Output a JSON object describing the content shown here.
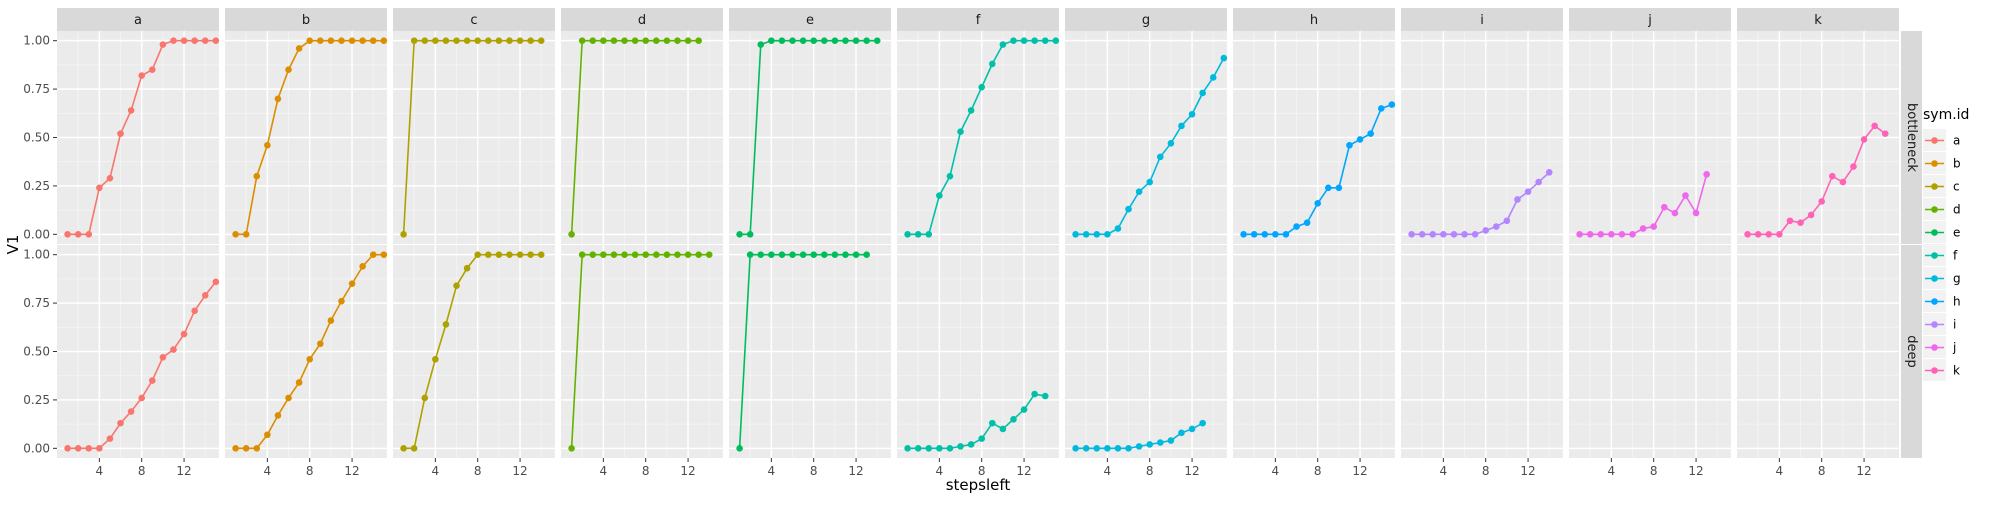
{
  "chart_data": {
    "type": "line",
    "facet_columns": [
      "a",
      "b",
      "c",
      "d",
      "e",
      "f",
      "g",
      "h",
      "i",
      "j",
      "k"
    ],
    "facet_rows": [
      "bottleneck",
      "deep"
    ],
    "xlabel": "stepsleft",
    "ylabel": "V1",
    "x_range": [
      0,
      15.3
    ],
    "x_ticks": [
      4,
      8,
      12
    ],
    "ylim": [
      -0.05,
      1.05
    ],
    "y_ticks": [
      0.0,
      0.25,
      0.5,
      0.75,
      1.0
    ],
    "y_tick_labels": [
      "0.00",
      "0.25",
      "0.50",
      "0.75",
      "1.00"
    ],
    "grid": true,
    "legend": {
      "title": "sym.id",
      "placement": "right",
      "entries": [
        "a",
        "b",
        "c",
        "d",
        "e",
        "f",
        "g",
        "h",
        "i",
        "j",
        "k"
      ]
    },
    "colors": {
      "a": "#F8766D",
      "b": "#DB8E00",
      "c": "#AEA200",
      "d": "#64B200",
      "e": "#00BD5C",
      "f": "#00C1A7",
      "g": "#00BADE",
      "h": "#00A6FF",
      "i": "#B385FF",
      "j": "#EF67EB",
      "k": "#FF63B6"
    },
    "panels": {
      "bottleneck": {
        "a": [
          [
            1,
            0
          ],
          [
            2,
            0
          ],
          [
            3,
            0
          ],
          [
            4,
            0.24
          ],
          [
            5,
            0.29
          ],
          [
            6,
            0.52
          ],
          [
            7,
            0.64
          ],
          [
            8,
            0.82
          ],
          [
            9,
            0.85
          ],
          [
            10,
            0.98
          ],
          [
            11,
            1
          ],
          [
            12,
            1
          ],
          [
            13,
            1
          ],
          [
            14,
            1
          ],
          [
            15,
            1
          ]
        ],
        "b": [
          [
            1,
            0
          ],
          [
            2,
            0
          ],
          [
            3,
            0.3
          ],
          [
            4,
            0.46
          ],
          [
            5,
            0.7
          ],
          [
            6,
            0.85
          ],
          [
            7,
            0.96
          ],
          [
            8,
            1
          ],
          [
            9,
            1
          ],
          [
            10,
            1
          ],
          [
            11,
            1
          ],
          [
            12,
            1
          ],
          [
            13,
            1
          ],
          [
            14,
            1
          ],
          [
            15,
            1
          ]
        ],
        "c": [
          [
            1,
            0
          ],
          [
            2,
            1
          ],
          [
            3,
            1
          ],
          [
            4,
            1
          ],
          [
            5,
            1
          ],
          [
            6,
            1
          ],
          [
            7,
            1
          ],
          [
            8,
            1
          ],
          [
            9,
            1
          ],
          [
            10,
            1
          ],
          [
            11,
            1
          ],
          [
            12,
            1
          ],
          [
            13,
            1
          ],
          [
            14,
            1
          ]
        ],
        "d": [
          [
            1,
            0
          ],
          [
            2,
            1
          ],
          [
            3,
            1
          ],
          [
            4,
            1
          ],
          [
            5,
            1
          ],
          [
            6,
            1
          ],
          [
            7,
            1
          ],
          [
            8,
            1
          ],
          [
            9,
            1
          ],
          [
            10,
            1
          ],
          [
            11,
            1
          ],
          [
            12,
            1
          ],
          [
            13,
            1
          ]
        ],
        "e": [
          [
            1,
            0
          ],
          [
            2,
            0
          ],
          [
            3,
            0.98
          ],
          [
            4,
            1
          ],
          [
            5,
            1
          ],
          [
            6,
            1
          ],
          [
            7,
            1
          ],
          [
            8,
            1
          ],
          [
            9,
            1
          ],
          [
            10,
            1
          ],
          [
            11,
            1
          ],
          [
            12,
            1
          ],
          [
            13,
            1
          ],
          [
            14,
            1
          ]
        ],
        "f": [
          [
            1,
            0
          ],
          [
            2,
            0
          ],
          [
            3,
            0
          ],
          [
            4,
            0.2
          ],
          [
            5,
            0.3
          ],
          [
            6,
            0.53
          ],
          [
            7,
            0.64
          ],
          [
            8,
            0.76
          ],
          [
            9,
            0.88
          ],
          [
            10,
            0.98
          ],
          [
            11,
            1
          ],
          [
            12,
            1
          ],
          [
            13,
            1
          ],
          [
            14,
            1
          ],
          [
            15,
            1
          ]
        ],
        "g": [
          [
            1,
            0
          ],
          [
            2,
            0
          ],
          [
            3,
            0
          ],
          [
            4,
            0
          ],
          [
            5,
            0.03
          ],
          [
            6,
            0.13
          ],
          [
            7,
            0.22
          ],
          [
            8,
            0.27
          ],
          [
            9,
            0.4
          ],
          [
            10,
            0.47
          ],
          [
            11,
            0.56
          ],
          [
            12,
            0.62
          ],
          [
            13,
            0.73
          ],
          [
            14,
            0.81
          ],
          [
            15,
            0.91
          ]
        ],
        "h": [
          [
            1,
            0
          ],
          [
            2,
            0
          ],
          [
            3,
            0
          ],
          [
            4,
            0
          ],
          [
            5,
            0
          ],
          [
            6,
            0.04
          ],
          [
            7,
            0.06
          ],
          [
            8,
            0.16
          ],
          [
            9,
            0.24
          ],
          [
            10,
            0.24
          ],
          [
            11,
            0.46
          ],
          [
            12,
            0.49
          ],
          [
            13,
            0.52
          ],
          [
            14,
            0.65
          ],
          [
            15,
            0.67
          ]
        ],
        "i": [
          [
            1,
            0
          ],
          [
            2,
            0
          ],
          [
            3,
            0
          ],
          [
            4,
            0
          ],
          [
            5,
            0
          ],
          [
            6,
            0
          ],
          [
            7,
            0
          ],
          [
            8,
            0.02
          ],
          [
            9,
            0.04
          ],
          [
            10,
            0.07
          ],
          [
            11,
            0.18
          ],
          [
            12,
            0.22
          ],
          [
            13,
            0.27
          ],
          [
            14,
            0.32
          ]
        ],
        "j": [
          [
            1,
            0
          ],
          [
            2,
            0
          ],
          [
            3,
            0
          ],
          [
            4,
            0
          ],
          [
            5,
            0
          ],
          [
            6,
            0
          ],
          [
            7,
            0.03
          ],
          [
            8,
            0.04
          ],
          [
            9,
            0.14
          ],
          [
            10,
            0.11
          ],
          [
            11,
            0.2
          ],
          [
            12,
            0.11
          ],
          [
            13,
            0.31
          ]
        ],
        "k": [
          [
            1,
            0
          ],
          [
            2,
            0
          ],
          [
            3,
            0
          ],
          [
            4,
            0
          ],
          [
            5,
            0.07
          ],
          [
            6,
            0.06
          ],
          [
            7,
            0.1
          ],
          [
            8,
            0.17
          ],
          [
            9,
            0.3
          ],
          [
            10,
            0.27
          ],
          [
            11,
            0.35
          ],
          [
            12,
            0.49
          ],
          [
            13,
            0.56
          ],
          [
            14,
            0.52
          ]
        ]
      },
      "deep": {
        "a": [
          [
            1,
            0
          ],
          [
            2,
            0
          ],
          [
            3,
            0
          ],
          [
            4,
            0
          ],
          [
            5,
            0.05
          ],
          [
            6,
            0.13
          ],
          [
            7,
            0.19
          ],
          [
            8,
            0.26
          ],
          [
            9,
            0.35
          ],
          [
            10,
            0.47
          ],
          [
            11,
            0.51
          ],
          [
            12,
            0.59
          ],
          [
            13,
            0.71
          ],
          [
            14,
            0.79
          ],
          [
            15,
            0.86
          ]
        ],
        "b": [
          [
            1,
            0
          ],
          [
            2,
            0
          ],
          [
            3,
            0
          ],
          [
            4,
            0.07
          ],
          [
            5,
            0.17
          ],
          [
            6,
            0.26
          ],
          [
            7,
            0.34
          ],
          [
            8,
            0.46
          ],
          [
            9,
            0.54
          ],
          [
            10,
            0.66
          ],
          [
            11,
            0.76
          ],
          [
            12,
            0.85
          ],
          [
            13,
            0.94
          ],
          [
            14,
            1
          ],
          [
            15,
            1
          ]
        ],
        "c": [
          [
            1,
            0
          ],
          [
            2,
            0
          ],
          [
            3,
            0.26
          ],
          [
            4,
            0.46
          ],
          [
            5,
            0.64
          ],
          [
            6,
            0.84
          ],
          [
            7,
            0.93
          ],
          [
            8,
            1
          ],
          [
            9,
            1
          ],
          [
            10,
            1
          ],
          [
            11,
            1
          ],
          [
            12,
            1
          ],
          [
            13,
            1
          ],
          [
            14,
            1
          ]
        ],
        "d": [
          [
            1,
            0
          ],
          [
            2,
            1
          ],
          [
            3,
            1
          ],
          [
            4,
            1
          ],
          [
            5,
            1
          ],
          [
            6,
            1
          ],
          [
            7,
            1
          ],
          [
            8,
            1
          ],
          [
            9,
            1
          ],
          [
            10,
            1
          ],
          [
            11,
            1
          ],
          [
            12,
            1
          ],
          [
            13,
            1
          ],
          [
            14,
            1
          ]
        ],
        "e": [
          [
            1,
            0
          ],
          [
            2,
            1
          ],
          [
            3,
            1
          ],
          [
            4,
            1
          ],
          [
            5,
            1
          ],
          [
            6,
            1
          ],
          [
            7,
            1
          ],
          [
            8,
            1
          ],
          [
            9,
            1
          ],
          [
            10,
            1
          ],
          [
            11,
            1
          ],
          [
            12,
            1
          ],
          [
            13,
            1
          ]
        ],
        "f": [
          [
            1,
            0
          ],
          [
            2,
            0
          ],
          [
            3,
            0
          ],
          [
            4,
            0
          ],
          [
            5,
            0
          ],
          [
            6,
            0.01
          ],
          [
            7,
            0.02
          ],
          [
            8,
            0.05
          ],
          [
            9,
            0.13
          ],
          [
            10,
            0.1
          ],
          [
            11,
            0.15
          ],
          [
            12,
            0.2
          ],
          [
            13,
            0.28
          ],
          [
            14,
            0.27
          ]
        ],
        "g": [
          [
            1,
            0
          ],
          [
            2,
            0
          ],
          [
            3,
            0
          ],
          [
            4,
            0
          ],
          [
            5,
            0
          ],
          [
            6,
            0
          ],
          [
            7,
            0.01
          ],
          [
            8,
            0.02
          ],
          [
            9,
            0.03
          ],
          [
            10,
            0.04
          ],
          [
            11,
            0.08
          ],
          [
            12,
            0.1
          ],
          [
            13,
            0.13
          ]
        ],
        "h": [],
        "i": [],
        "j": [],
        "k": []
      }
    }
  }
}
